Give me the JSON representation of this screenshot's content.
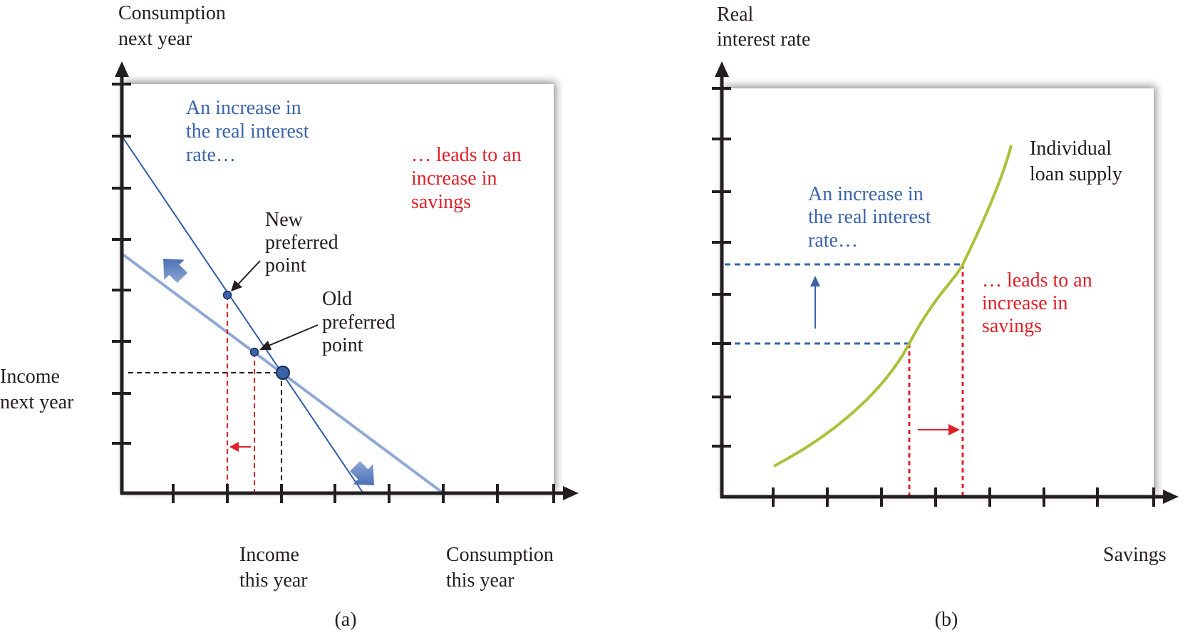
{
  "panel_a": {
    "y_axis_label": [
      "Consumption",
      "next year"
    ],
    "x_axis_label": [
      "Consumption",
      "this year"
    ],
    "income_next_year_label": [
      "Income",
      "next year"
    ],
    "income_this_year_label": [
      "Income",
      "this year"
    ],
    "blue_annotation": [
      "An increase in",
      "the real interest",
      "rate…"
    ],
    "red_annotation": [
      "… leads to an",
      "increase in",
      "savings"
    ],
    "new_point_label": [
      "New",
      "preferred",
      "point"
    ],
    "old_point_label": [
      "Old",
      "preferred",
      "point"
    ],
    "caption": "(a)"
  },
  "panel_b": {
    "y_axis_label": [
      "Real",
      "interest rate"
    ],
    "x_axis_label": "Savings",
    "curve_label": [
      "Individual",
      "loan supply"
    ],
    "blue_annotation": [
      "An increase in",
      "the real interest",
      "rate…"
    ],
    "red_annotation": [
      "… leads to an",
      "increase in",
      "savings"
    ],
    "caption": "(b)"
  },
  "colors": {
    "blue": "#3a64a8",
    "light_blue": "#8fa8d6",
    "red": "#e0202a",
    "green": "#a8c23a",
    "axis": "#231f20"
  }
}
